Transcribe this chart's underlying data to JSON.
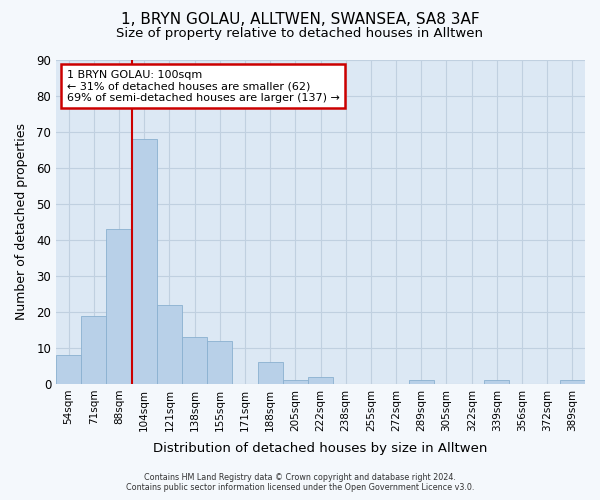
{
  "title1": "1, BRYN GOLAU, ALLTWEN, SWANSEA, SA8 3AF",
  "title2": "Size of property relative to detached houses in Alltwen",
  "xlabel": "Distribution of detached houses by size in Alltwen",
  "ylabel": "Number of detached properties",
  "categories": [
    "54sqm",
    "71sqm",
    "88sqm",
    "104sqm",
    "121sqm",
    "138sqm",
    "155sqm",
    "171sqm",
    "188sqm",
    "205sqm",
    "222sqm",
    "238sqm",
    "255sqm",
    "272sqm",
    "289sqm",
    "305sqm",
    "322sqm",
    "339sqm",
    "356sqm",
    "372sqm",
    "389sqm"
  ],
  "values": [
    8,
    19,
    43,
    68,
    22,
    13,
    12,
    0,
    6,
    1,
    2,
    0,
    0,
    0,
    1,
    0,
    0,
    1,
    0,
    0,
    1
  ],
  "bar_color": "#b8d0e8",
  "bar_edge_color": "#8ab0d0",
  "grid_color": "#c0d0e0",
  "background_color": "#dce8f4",
  "fig_background_color": "#f4f8fc",
  "annotation_text_line1": "1 BRYN GOLAU: 100sqm",
  "annotation_text_line2": "← 31% of detached houses are smaller (62)",
  "annotation_text_line3": "69% of semi-detached houses are larger (137) →",
  "annotation_box_facecolor": "#ffffff",
  "annotation_box_edgecolor": "#cc0000",
  "vline_color": "#cc0000",
  "vline_x_index": 3,
  "ylim": [
    0,
    90
  ],
  "yticks": [
    0,
    10,
    20,
    30,
    40,
    50,
    60,
    70,
    80,
    90
  ],
  "footer1": "Contains HM Land Registry data © Crown copyright and database right 2024.",
  "footer2": "Contains public sector information licensed under the Open Government Licence v3.0."
}
